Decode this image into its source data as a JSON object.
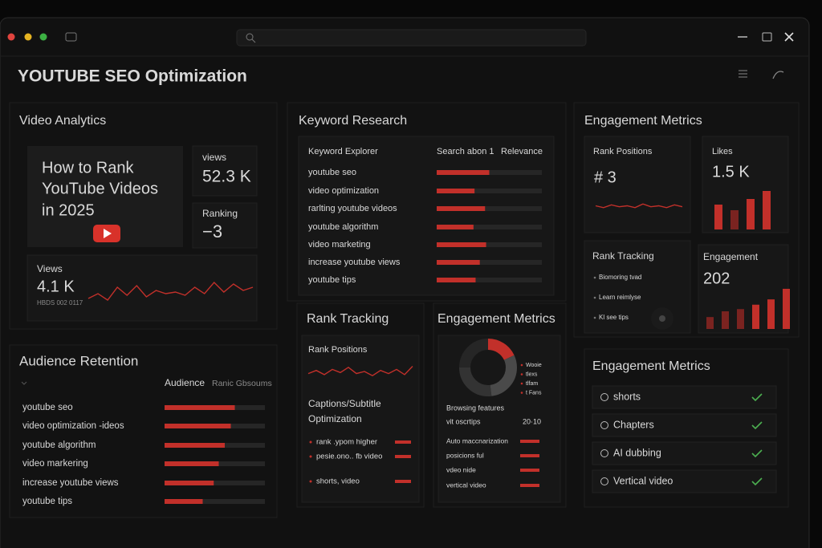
{
  "header": {
    "title": "YOUTUBE SEO Optimization"
  },
  "video_analytics": {
    "title": "Video Analytics",
    "thumbnail_title_lines": [
      "How to Rank",
      "YouTube Videos",
      "in 2025"
    ],
    "views_label": "views",
    "views_value": "52.3 K",
    "ranking_label": "Ranking",
    "ranking_value": "−3",
    "trend_label": "Views",
    "trend_value": "4.1 K",
    "trend_caption": "HBDS 002 0117",
    "sparkline": [
      20,
      35,
      15,
      55,
      30,
      60,
      25,
      45,
      35,
      40,
      30,
      55,
      35,
      70,
      40,
      65,
      45,
      55
    ]
  },
  "audience_retention": {
    "title": "Audience Retention",
    "columns": [
      "Audience",
      "Ranic Gbsoums"
    ],
    "rows": [
      {
        "label": "youtube seo",
        "value": 70
      },
      {
        "label": "video optimization -ideos",
        "value": 66
      },
      {
        "label": "youtube algorithm",
        "value": 60
      },
      {
        "label": "video markering",
        "value": 54
      },
      {
        "label": "increase youtube views",
        "value": 49
      },
      {
        "label": "youtube tips",
        "value": 38
      }
    ]
  },
  "keyword_research": {
    "title": "Keyword Research",
    "columns": [
      "Keyword Explorer",
      "Search abon 1",
      "Relevance"
    ],
    "rows": [
      {
        "label": "youtube seo",
        "value": 50
      },
      {
        "label": "video optimization",
        "value": 36
      },
      {
        "label": "rarlting youtube videos",
        "value": 46
      },
      {
        "label": "youtube algorithm",
        "value": 35
      },
      {
        "label": "video marketing",
        "value": 47
      },
      {
        "label": "increase youtube views",
        "value": 41
      },
      {
        "label": "youtube tips",
        "value": 37
      }
    ]
  },
  "rank_tracking": {
    "title": "Rank Tracking",
    "subtitle": "Rank Positions",
    "sparkline": [
      40,
      55,
      35,
      60,
      45,
      70,
      40,
      50,
      30,
      55,
      40,
      60,
      35,
      75
    ],
    "section_lines": [
      "Captions/Subtitle",
      "Optimization"
    ],
    "items": [
      "rank .ypom   higher",
      "pesie.ono.. fb  video",
      "shorts, video"
    ]
  },
  "engagement_mid": {
    "title": "Engagement Metrics",
    "donut": {
      "values": [
        18,
        30,
        27,
        25
      ],
      "colors": [
        "#c2302a",
        "#4a4a4a",
        "#333333",
        "#262626"
      ]
    },
    "legend": [
      "Wooie",
      "tlexs",
      "tlfam",
      "t Fans"
    ],
    "browsing_label": "Browsing features",
    "scripts_label": "vit oscrtips",
    "scripts_value": "20·10",
    "items": [
      "Auto maccnarization",
      "posicions ful",
      "vdeo nide",
      "vertical video"
    ]
  },
  "engagement_right": {
    "title": "Engagement Metrics",
    "rank_label": "Rank Positions",
    "rank_value": "# 3",
    "rank_sparkline": [
      50,
      40,
      55,
      45,
      50,
      40,
      60,
      45,
      50,
      40,
      55,
      45
    ],
    "likes_label": "Likes",
    "likes_value": "1.5 K",
    "likes_bars": [
      62,
      48,
      76,
      96
    ],
    "tracking_label": "Rank Tracking",
    "tracking_items": [
      "Biomoring tvad",
      "Learn reimlyse",
      "Kl see tips"
    ],
    "engagement_label": "Engagement",
    "engagement_value": "202",
    "engagement_bars": [
      27,
      40,
      45,
      55,
      67,
      91
    ]
  },
  "features": {
    "title": "Engagement Metrics",
    "items": [
      "shorts",
      "Chapters",
      "AI dubbing",
      "Vertical video"
    ]
  }
}
